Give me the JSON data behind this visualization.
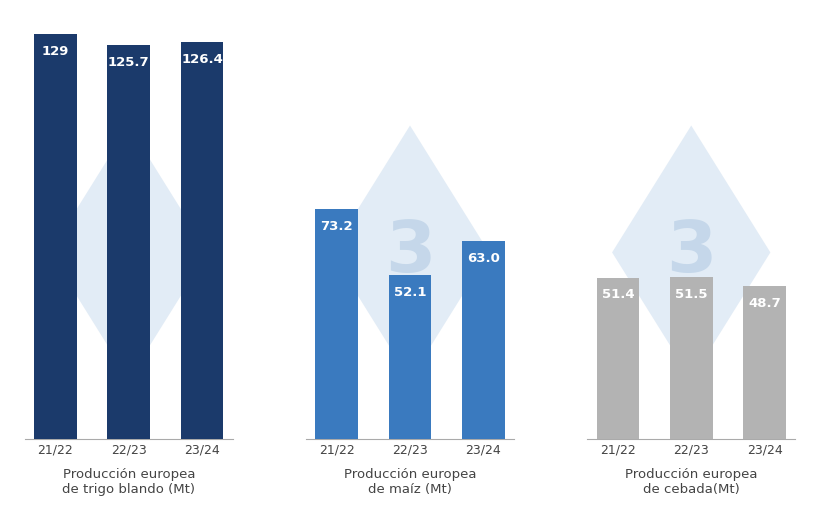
{
  "groups": [
    {
      "label": "Producción europea\nde trigo blando (Mt)",
      "categories": [
        "21/22",
        "22/23",
        "23/24"
      ],
      "values": [
        129,
        125.7,
        126.4
      ],
      "color": "#1b3a6b",
      "bar_labels": [
        "129",
        "125.7",
        "126.4"
      ]
    },
    {
      "label": "Producción europea\nde maíz (Mt)",
      "categories": [
        "21/22",
        "22/23",
        "23/24"
      ],
      "values": [
        73.2,
        52.1,
        63.0
      ],
      "color": "#3a7abf",
      "bar_labels": [
        "73.2",
        "52.1",
        "63.0"
      ]
    },
    {
      "label": "Producción europea\nde cebada(Mt)",
      "categories": [
        "21/22",
        "22/23",
        "23/24"
      ],
      "values": [
        51.4,
        51.5,
        48.7
      ],
      "color": "#b3b3b3",
      "bar_labels": [
        "51.4",
        "51.5",
        "48.7"
      ]
    }
  ],
  "background_color": "#ffffff",
  "bar_label_color": "#ffffff",
  "bar_label_fontsize": 9.5,
  "xlabel_fontsize": 9.5,
  "ylim_max": 135,
  "bar_width": 0.58,
  "watermark_color": "#d0e0f0",
  "watermark_alpha": 0.6,
  "watermark_text_color": "#c0d4e8"
}
